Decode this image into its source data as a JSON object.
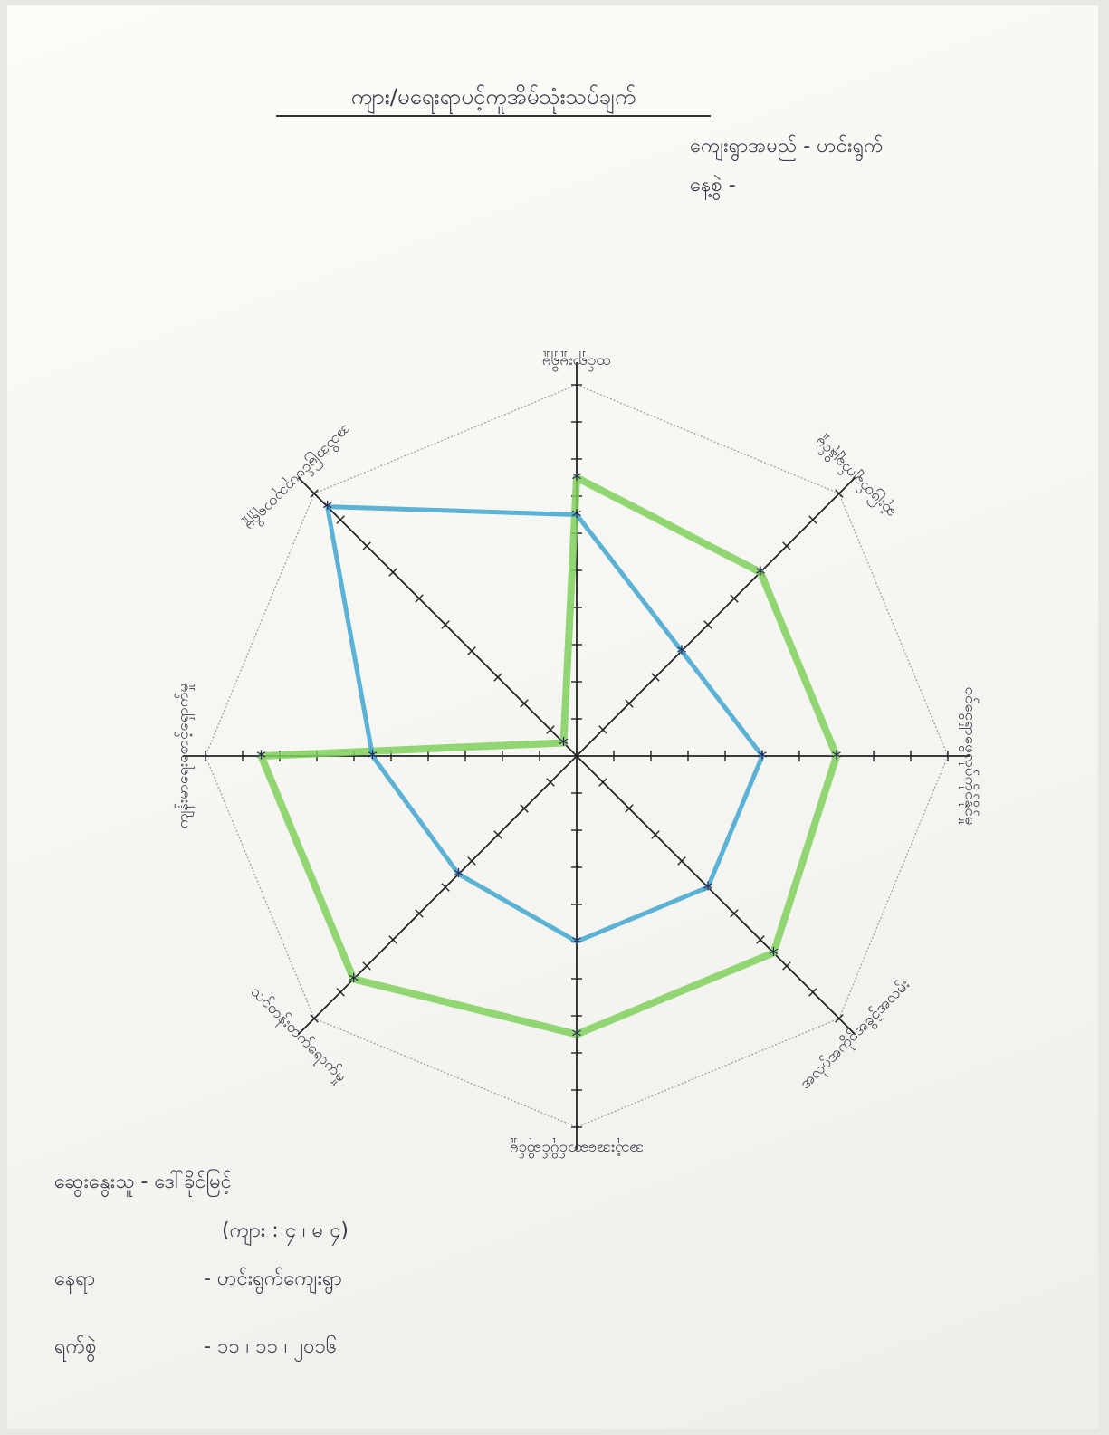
{
  "chart_data": {
    "type": "radar",
    "title": "ကျား/မရေးရာပင့်ကူအိမ်သုံးသပ်ချက်",
    "village_label": "ကျေးရွာအမည် - ဟင်းရွက်",
    "date_label": "နေ့စွဲ -",
    "categories": [
      "ထင်ရှားမှုရှိမှု",
      "ဆုံးဖြတ်ချက်ချနိုင်မှု",
      "ဝင်ငွေရှာဖွေလုပ်ကိုင်နိုင်မှု",
      "အလုပ်အကိုင်အခွင့်အလမ်း",
      "အသုံးအဆောင်ပိုင်ဆိုင်မှု",
      "သင်တန်းတက်ရောက်မှု",
      "ကျန်းမာရေးစောင့်ရှောက်မှု",
      "အသိအမြင်ဗဟုသုတရရှိမှု"
    ],
    "series": [
      {
        "color": "#7fd05c",
        "values": [
          7.5,
          7,
          7,
          7.5,
          7.5,
          8.5,
          8.5,
          0.5
        ]
      },
      {
        "color": "#3fa6cf",
        "values": [
          6.5,
          4,
          5,
          5,
          5,
          4.5,
          5.5,
          9.5
        ]
      }
    ],
    "rlim": [
      0,
      10
    ],
    "rticks": [
      1,
      2,
      3,
      4,
      5,
      6,
      7,
      8,
      9,
      10
    ],
    "footer": {
      "facilitator": "ဆွေးနွေးသူ - ဒေါ်ခိုင်မြင့်",
      "participants": "(ကျား : ၄ ၊ မ ၄)",
      "place_label": "နေရာ",
      "place": "- ဟင်းရွက်ကျေးရွာ",
      "date_label": "ရက်စွဲ",
      "date": "- ၁၁ ၊ ၁၁ ၊ ၂၀၁၆"
    }
  }
}
